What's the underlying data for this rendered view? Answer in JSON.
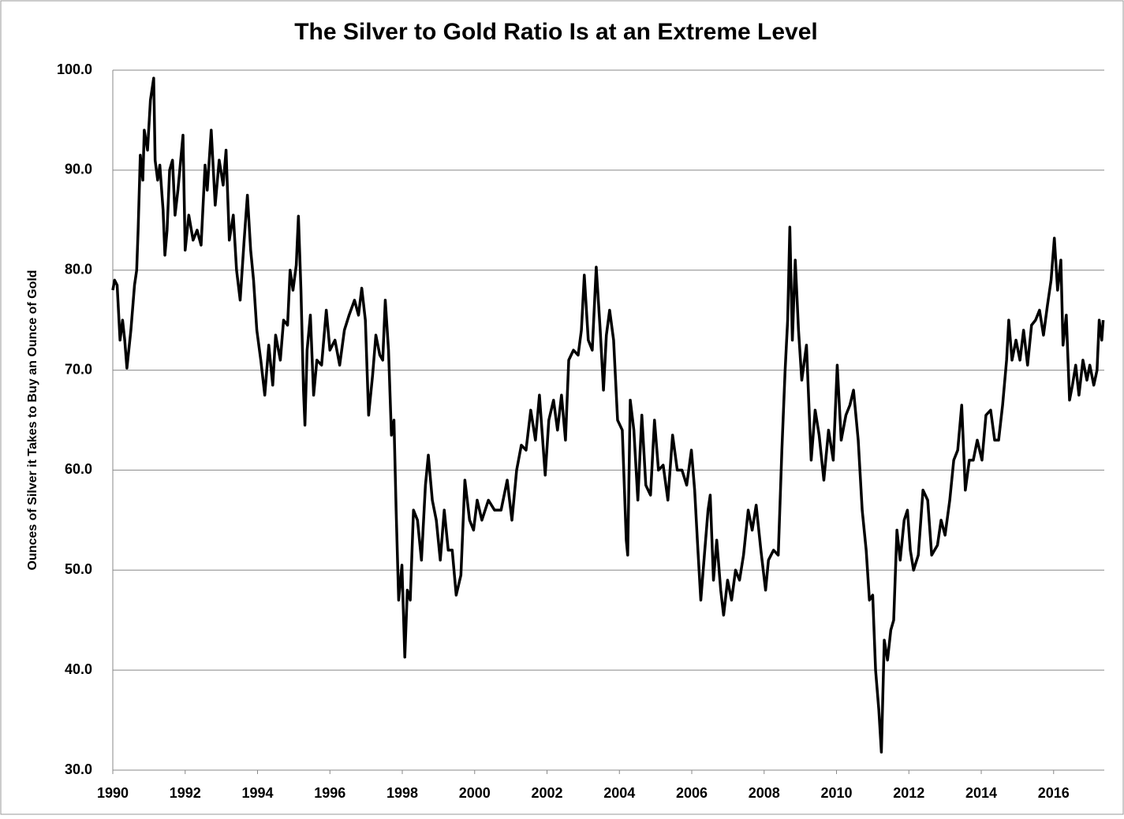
{
  "chart_data": {
    "type": "line",
    "title": "The Silver to Gold Ratio Is at an Extreme Level",
    "y_label": "Ounces of Silver it Takes to Buy an Ounce of Gold",
    "color": "#000000",
    "grid": true,
    "xlim": [
      1990,
      2017.4
    ],
    "xticks": [
      1990,
      1992,
      1994,
      1996,
      1998,
      2000,
      2002,
      2004,
      2006,
      2008,
      2010,
      2012,
      2014,
      2016
    ],
    "ylim": [
      30,
      100
    ],
    "yticks": [
      {
        "value": 30,
        "label": "30.0"
      },
      {
        "value": 40,
        "label": "40.0"
      },
      {
        "value": 50,
        "label": "50.0"
      },
      {
        "value": 60,
        "label": "60.0"
      },
      {
        "value": 70,
        "label": "70.0"
      },
      {
        "value": 80,
        "label": "80.0"
      },
      {
        "value": 90,
        "label": "90.0"
      },
      {
        "value": 100,
        "label": "100.0"
      }
    ],
    "x": [
      1990.0,
      1990.05,
      1990.12,
      1990.2,
      1990.27,
      1990.33,
      1990.39,
      1990.5,
      1990.6,
      1990.66,
      1990.7,
      1990.76,
      1990.83,
      1990.87,
      1990.96,
      1991.04,
      1991.13,
      1991.17,
      1991.24,
      1991.3,
      1991.39,
      1991.44,
      1991.5,
      1991.57,
      1991.65,
      1991.72,
      1991.8,
      1991.94,
      1992.0,
      1992.1,
      1992.22,
      1992.33,
      1992.44,
      1992.55,
      1992.61,
      1992.72,
      1992.83,
      1992.94,
      1993.05,
      1993.13,
      1993.22,
      1993.33,
      1993.42,
      1993.52,
      1993.63,
      1993.72,
      1993.81,
      1993.89,
      1993.98,
      1994.09,
      1994.2,
      1994.31,
      1994.42,
      1994.5,
      1994.63,
      1994.72,
      1994.83,
      1994.9,
      1994.98,
      1995.07,
      1995.13,
      1995.2,
      1995.27,
      1995.31,
      1995.37,
      1995.46,
      1995.55,
      1995.64,
      1995.77,
      1995.9,
      1996.0,
      1996.14,
      1996.27,
      1996.4,
      1996.53,
      1996.68,
      1996.79,
      1996.88,
      1996.98,
      1997.07,
      1997.18,
      1997.27,
      1997.38,
      1997.46,
      1997.53,
      1997.62,
      1997.7,
      1997.77,
      1997.83,
      1997.9,
      1997.99,
      1998.07,
      1998.14,
      1998.22,
      1998.31,
      1998.42,
      1998.53,
      1998.64,
      1998.72,
      1998.83,
      1998.94,
      1999.05,
      1999.16,
      1999.27,
      1999.38,
      1999.49,
      1999.62,
      1999.73,
      1999.86,
      1999.97,
      2000.07,
      2000.2,
      2000.38,
      2000.55,
      2000.73,
      2000.9,
      2001.03,
      2001.16,
      2001.29,
      2001.42,
      2001.55,
      2001.68,
      2001.79,
      2001.95,
      2002.05,
      2002.18,
      2002.29,
      2002.4,
      2002.51,
      2002.6,
      2002.73,
      2002.86,
      2002.95,
      2003.03,
      2003.14,
      2003.25,
      2003.36,
      2003.47,
      2003.56,
      2003.64,
      2003.73,
      2003.84,
      2003.95,
      2004.08,
      2004.19,
      2004.23,
      2004.3,
      2004.4,
      2004.51,
      2004.62,
      2004.73,
      2004.86,
      2004.97,
      2005.08,
      2005.21,
      2005.34,
      2005.47,
      2005.6,
      2005.73,
      2005.86,
      2005.99,
      2006.08,
      2006.17,
      2006.25,
      2006.36,
      2006.45,
      2006.51,
      2006.6,
      2006.69,
      2006.8,
      2006.88,
      2006.99,
      2007.1,
      2007.21,
      2007.32,
      2007.43,
      2007.56,
      2007.67,
      2007.78,
      2007.91,
      2008.04,
      2008.12,
      2008.26,
      2008.39,
      2008.49,
      2008.58,
      2008.65,
      2008.71,
      2008.78,
      2008.86,
      2008.95,
      2009.04,
      2009.17,
      2009.3,
      2009.41,
      2009.52,
      2009.65,
      2009.78,
      2009.91,
      2010.02,
      2010.13,
      2010.26,
      2010.37,
      2010.47,
      2010.6,
      2010.71,
      2010.82,
      2010.91,
      2011.0,
      2011.08,
      2011.17,
      2011.24,
      2011.32,
      2011.41,
      2011.5,
      2011.58,
      2011.67,
      2011.76,
      2011.87,
      2011.96,
      2012.04,
      2012.13,
      2012.26,
      2012.39,
      2012.52,
      2012.63,
      2012.79,
      2012.89,
      2013.0,
      2013.13,
      2013.24,
      2013.35,
      2013.46,
      2013.56,
      2013.67,
      2013.78,
      2013.89,
      2014.02,
      2014.13,
      2014.26,
      2014.37,
      2014.48,
      2014.59,
      2014.7,
      2014.76,
      2014.85,
      2014.96,
      2015.07,
      2015.17,
      2015.28,
      2015.39,
      2015.5,
      2015.61,
      2015.72,
      2015.83,
      2015.93,
      2016.02,
      2016.11,
      2016.2,
      2016.26,
      2016.35,
      2016.44,
      2016.52,
      2016.61,
      2016.7,
      2016.81,
      2016.92,
      2017.0,
      2017.11,
      2017.2,
      2017.26,
      2017.33,
      2017.37
    ],
    "values": [
      78,
      79,
      78.5,
      73,
      75,
      73,
      70.2,
      74,
      78.5,
      80,
      84,
      91.5,
      89,
      94,
      92,
      97,
      99.2,
      91,
      89,
      90.5,
      86,
      81.5,
      84,
      90,
      91,
      85.5,
      88,
      93.5,
      82,
      85.5,
      83,
      84,
      82.5,
      90.5,
      88,
      94,
      86.5,
      91,
      88.5,
      92,
      83,
      85.5,
      80,
      77,
      83,
      87.5,
      82,
      79,
      74,
      71,
      67.5,
      72.5,
      68.5,
      73.5,
      71,
      75,
      74.5,
      80,
      78,
      80.5,
      85.4,
      78,
      68,
      64.5,
      72,
      75.5,
      67.5,
      71,
      70.5,
      76,
      72,
      73,
      70.5,
      74,
      75.5,
      77,
      75.5,
      78.2,
      75,
      65.5,
      69.5,
      73.5,
      71.5,
      71,
      77,
      72,
      63.5,
      65,
      56,
      47,
      50.5,
      41.3,
      48,
      47,
      56,
      55,
      51,
      58.5,
      61.5,
      57,
      55,
      51,
      56,
      52,
      52,
      47.5,
      49.5,
      59,
      55,
      54,
      57,
      55,
      57,
      56,
      56,
      59,
      55,
      60,
      62.5,
      62,
      66,
      63,
      67.5,
      59.5,
      65,
      67,
      64,
      67.5,
      63,
      71,
      72,
      71.5,
      74,
      79.5,
      73,
      72,
      80.3,
      74,
      68,
      73.5,
      76,
      73,
      65,
      64,
      53,
      51.5,
      67,
      64,
      57,
      65.5,
      58.5,
      57.5,
      65,
      60,
      60.5,
      57,
      63.5,
      60,
      60,
      58.5,
      62,
      58,
      52,
      47,
      52,
      56,
      57.5,
      49,
      53,
      48,
      45.5,
      49,
      47,
      50,
      49,
      51.5,
      56,
      54,
      56.5,
      52,
      48,
      51,
      52,
      51.5,
      62,
      70,
      75,
      84.3,
      73,
      81,
      74,
      69,
      72.5,
      61,
      66,
      63.5,
      59,
      64,
      61,
      70.5,
      63,
      65.5,
      66.5,
      68,
      63,
      56,
      52,
      47,
      47.5,
      40,
      36,
      31.8,
      43,
      41,
      44,
      45,
      54,
      51,
      55,
      56,
      52,
      50,
      51.5,
      58,
      57,
      51.5,
      52.5,
      55,
      53.5,
      57,
      61,
      62,
      66.5,
      58,
      61,
      61,
      63,
      61,
      65.5,
      66,
      63,
      63,
      66.5,
      71,
      75,
      71,
      73,
      71,
      74,
      70.5,
      74.5,
      75,
      76,
      73.5,
      76.5,
      79,
      83.2,
      78,
      81,
      72.5,
      75.5,
      67,
      68.5,
      70.5,
      67.5,
      71,
      69,
      70.5,
      68.5,
      70,
      75,
      73,
      75
    ]
  }
}
